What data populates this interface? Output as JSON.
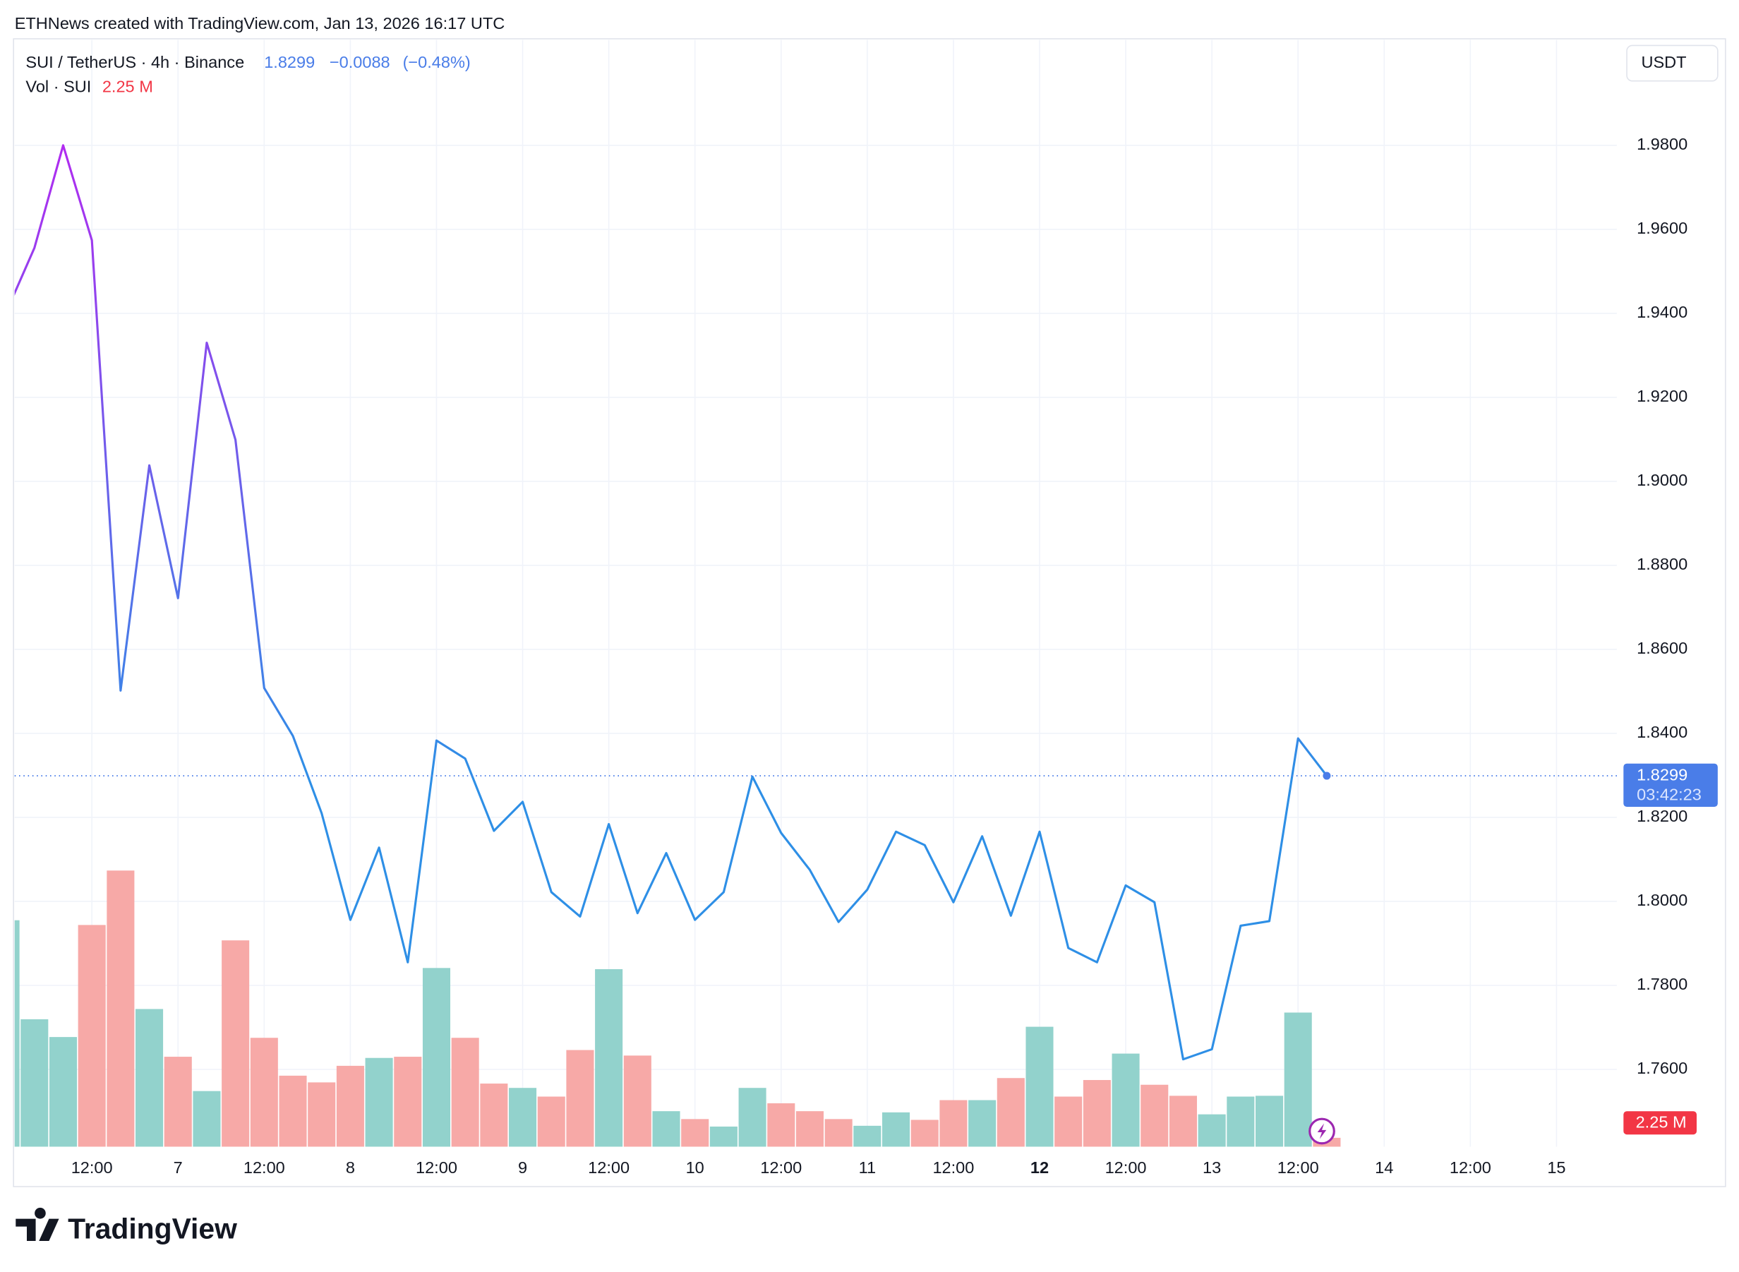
{
  "header": {
    "credit": "ETHNews created with TradingView.com, Jan 13, 2026 16:17 UTC",
    "change": "−0.0088",
    "change_pct": "(−0.48%)",
    "currency": "USDT",
    "countdown": "03:42:23",
    "brand": "TradingView"
  },
  "chart_data": {
    "type": "line",
    "x": [
      0,
      1,
      2,
      3,
      4,
      5,
      6,
      7,
      8,
      9,
      10,
      11,
      12,
      13,
      14,
      15,
      16,
      17,
      18,
      19,
      20,
      21,
      22,
      23,
      24,
      25,
      26,
      27,
      28,
      29,
      30,
      31,
      32,
      33,
      34,
      35,
      36,
      37,
      38,
      39,
      40,
      41,
      42,
      43,
      44,
      45,
      46
    ],
    "xlim": [
      0.31,
      56.1
    ],
    "xticks": [
      {
        "value": 3,
        "label": "12:00"
      },
      {
        "value": 6,
        "label": "7"
      },
      {
        "value": 9,
        "label": "12:00"
      },
      {
        "value": 12,
        "label": "8"
      },
      {
        "value": 15,
        "label": "12:00"
      },
      {
        "value": 18,
        "label": "9"
      },
      {
        "value": 21,
        "label": "12:00"
      },
      {
        "value": 24,
        "label": "10"
      },
      {
        "value": 27,
        "label": "12:00"
      },
      {
        "value": 30,
        "label": "11"
      },
      {
        "value": 33,
        "label": "12:00"
      },
      {
        "value": 36,
        "label": "12",
        "bold": true
      },
      {
        "value": 39,
        "label": "12:00"
      },
      {
        "value": 42,
        "label": "13"
      },
      {
        "value": 45,
        "label": "12:00"
      },
      {
        "value": 48,
        "label": "14"
      },
      {
        "value": 51,
        "label": "12:00"
      },
      {
        "value": 54,
        "label": "15"
      }
    ],
    "ylim": [
      1.7416,
      2.0051
    ],
    "yticks": [
      {
        "value": 1.76,
        "label": "1.7600"
      },
      {
        "value": 1.78,
        "label": "1.7800"
      },
      {
        "value": 1.8,
        "label": "1.8000"
      },
      {
        "value": 1.82,
        "label": "1.8200"
      },
      {
        "value": 1.84,
        "label": "1.8400"
      },
      {
        "value": 1.86,
        "label": "1.8600"
      },
      {
        "value": 1.88,
        "label": "1.8800"
      },
      {
        "value": 1.9,
        "label": "1.9000"
      },
      {
        "value": 1.92,
        "label": "1.9200"
      },
      {
        "value": 1.94,
        "label": "1.9400"
      },
      {
        "value": 1.96,
        "label": "1.9600"
      },
      {
        "value": 1.98,
        "label": "1.9800"
      }
    ],
    "grid": true,
    "series": [
      {
        "name": "SUI / TetherUS · 4h · Binance",
        "color": [
          "#b02cf0",
          "#2e8fe6"
        ],
        "price_color": "#4a7de8",
        "values": [
          1.94,
          1.9556,
          1.98,
          1.9574,
          1.8502,
          1.9038,
          1.8722,
          1.933,
          1.9099,
          1.8508,
          1.8394,
          1.821,
          1.7956,
          1.8128,
          1.7855,
          1.8383,
          1.834,
          1.8168,
          1.8237,
          1.8022,
          1.7964,
          1.8184,
          1.7972,
          1.8115,
          1.7956,
          1.8022,
          1.8297,
          1.8163,
          1.8075,
          1.7951,
          1.8028,
          1.8166,
          1.8134,
          1.7998,
          1.8155,
          1.7966,
          1.8166,
          1.7889,
          1.7855,
          1.8038,
          1.7998,
          1.7624,
          1.7648,
          1.7942,
          1.7953,
          1.8388,
          1.8299
        ]
      },
      {
        "name": "Vol · SUI",
        "type": "bar",
        "label_color": "#f23645",
        "values": [
          57.4,
          32.3,
          27.8,
          56.2,
          70.0,
          34.9,
          22.8,
          14.1,
          52.3,
          27.6,
          18.0,
          16.3,
          20.5,
          22.5,
          22.8,
          45.3,
          27.6,
          16.0,
          14.9,
          12.7,
          24.5,
          45.0,
          23.1,
          9.0,
          7.0,
          5.1,
          14.9,
          11.0,
          9.0,
          7.0,
          5.3,
          8.7,
          6.8,
          11.8,
          11.8,
          17.4,
          30.4,
          12.7,
          16.9,
          23.6,
          15.7,
          12.9,
          8.2,
          12.7,
          12.9,
          34.0,
          2.25
        ],
        "value_labels": [
          null,
          null,
          null,
          null,
          null,
          null,
          null,
          null,
          null,
          null,
          null,
          null,
          null,
          null,
          null,
          null,
          null,
          null,
          null,
          null,
          null,
          null,
          null,
          null,
          null,
          null,
          null,
          null,
          null,
          null,
          null,
          null,
          null,
          null,
          null,
          null,
          null,
          null,
          null,
          null,
          null,
          null,
          null,
          null,
          null,
          null,
          "2.25 M"
        ],
        "colors": [
          "#92d2cc",
          "#92d2cc",
          "#92d2cc",
          "#f7a9a7",
          "#f7a9a7",
          "#92d2cc",
          "#f7a9a7",
          "#92d2cc",
          "#f7a9a7",
          "#f7a9a7",
          "#f7a9a7",
          "#f7a9a7",
          "#f7a9a7",
          "#92d2cc",
          "#f7a9a7",
          "#92d2cc",
          "#f7a9a7",
          "#f7a9a7",
          "#92d2cc",
          "#f7a9a7",
          "#f7a9a7",
          "#92d2cc",
          "#f7a9a7",
          "#92d2cc",
          "#f7a9a7",
          "#92d2cc",
          "#92d2cc",
          "#f7a9a7",
          "#f7a9a7",
          "#f7a9a7",
          "#92d2cc",
          "#92d2cc",
          "#f7a9a7",
          "#f7a9a7",
          "#92d2cc",
          "#f7a9a7",
          "#92d2cc",
          "#f7a9a7",
          "#f7a9a7",
          "#92d2cc",
          "#f7a9a7",
          "#f7a9a7",
          "#92d2cc",
          "#92d2cc",
          "#92d2cc",
          "#92d2cc",
          "#f7a9a7"
        ]
      }
    ]
  }
}
